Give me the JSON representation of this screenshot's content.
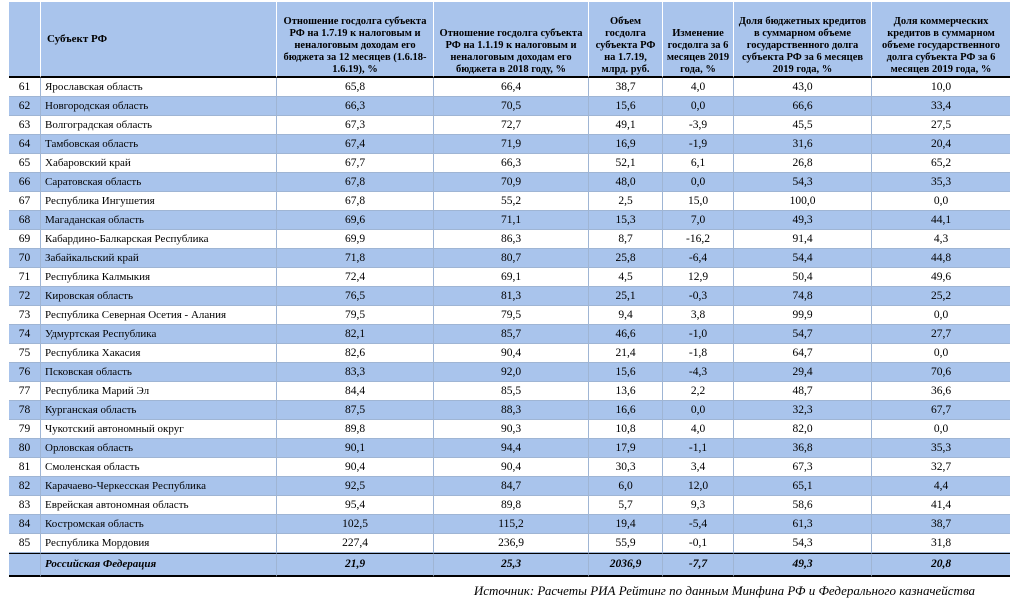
{
  "header": {
    "subject": "Субъект РФ",
    "c1": "Отношение госдолга субъекта РФ на 1.7.19 к налоговым и неналоговым доходам его бюджета за 12 месяцев (1.6.18-1.6.19), %",
    "c2": "Отношение госдолга субъекта РФ на 1.1.19 к налоговым и неналоговым доходам его бюджета в 2018 году, %",
    "c3": "Объем госдолга субъекта РФ на 1.7.19, млрд. руб.",
    "c4": "Изменение госдолга за 6 месяцев 2019 года, %",
    "c5": "Доля бюджетных кредитов в суммарном объеме государственного долга субъекта РФ за 6 месяцев 2019 года, %",
    "c6": "Доля коммерческих кредитов в суммарном объеме государственного долга субъекта РФ за 6 месяцев 2019 года, %"
  },
  "rows": [
    {
      "n": "61",
      "name": "Ярославская область",
      "v": [
        "65,8",
        "66,4",
        "38,7",
        "4,0",
        "43,0",
        "10,0"
      ]
    },
    {
      "n": "62",
      "name": "Новгородская область",
      "v": [
        "66,3",
        "70,5",
        "15,6",
        "0,0",
        "66,6",
        "33,4"
      ]
    },
    {
      "n": "63",
      "name": "Волгоградская область",
      "v": [
        "67,3",
        "72,7",
        "49,1",
        "-3,9",
        "45,5",
        "27,5"
      ]
    },
    {
      "n": "64",
      "name": "Тамбовская область",
      "v": [
        "67,4",
        "71,9",
        "16,9",
        "-1,9",
        "31,6",
        "20,4"
      ]
    },
    {
      "n": "65",
      "name": "Хабаровский край",
      "v": [
        "67,7",
        "66,3",
        "52,1",
        "6,1",
        "26,8",
        "65,2"
      ]
    },
    {
      "n": "66",
      "name": "Саратовская область",
      "v": [
        "67,8",
        "70,9",
        "48,0",
        "0,0",
        "54,3",
        "35,3"
      ]
    },
    {
      "n": "67",
      "name": "Республика Ингушетия",
      "v": [
        "67,8",
        "55,2",
        "2,5",
        "15,0",
        "100,0",
        "0,0"
      ]
    },
    {
      "n": "68",
      "name": "Магаданская область",
      "v": [
        "69,6",
        "71,1",
        "15,3",
        "7,0",
        "49,3",
        "44,1"
      ]
    },
    {
      "n": "69",
      "name": "Кабардино-Балкарская Республика",
      "v": [
        "69,9",
        "86,3",
        "8,7",
        "-16,2",
        "91,4",
        "4,3"
      ]
    },
    {
      "n": "70",
      "name": "Забайкальский край",
      "v": [
        "71,8",
        "80,7",
        "25,8",
        "-6,4",
        "54,4",
        "44,8"
      ]
    },
    {
      "n": "71",
      "name": "Республика Калмыкия",
      "v": [
        "72,4",
        "69,1",
        "4,5",
        "12,9",
        "50,4",
        "49,6"
      ]
    },
    {
      "n": "72",
      "name": "Кировская область",
      "v": [
        "76,5",
        "81,3",
        "25,1",
        "-0,3",
        "74,8",
        "25,2"
      ]
    },
    {
      "n": "73",
      "name": "Республика Северная Осетия - Алания",
      "v": [
        "79,5",
        "79,5",
        "9,4",
        "3,8",
        "99,9",
        "0,0"
      ]
    },
    {
      "n": "74",
      "name": "Удмуртская Республика",
      "v": [
        "82,1",
        "85,7",
        "46,6",
        "-1,0",
        "54,7",
        "27,7"
      ]
    },
    {
      "n": "75",
      "name": "Республика Хакасия",
      "v": [
        "82,6",
        "90,4",
        "21,4",
        "-1,8",
        "64,7",
        "0,0"
      ]
    },
    {
      "n": "76",
      "name": "Псковская область",
      "v": [
        "83,3",
        "92,0",
        "15,6",
        "-4,3",
        "29,4",
        "70,6"
      ]
    },
    {
      "n": "77",
      "name": "Республика Марий Эл",
      "v": [
        "84,4",
        "85,5",
        "13,6",
        "2,2",
        "48,7",
        "36,6"
      ]
    },
    {
      "n": "78",
      "name": "Курганская область",
      "v": [
        "87,5",
        "88,3",
        "16,6",
        "0,0",
        "32,3",
        "67,7"
      ]
    },
    {
      "n": "79",
      "name": "Чукотский автономный округ",
      "v": [
        "89,8",
        "90,3",
        "10,8",
        "4,0",
        "82,0",
        "0,0"
      ]
    },
    {
      "n": "80",
      "name": "Орловская область",
      "v": [
        "90,1",
        "94,4",
        "17,9",
        "-1,1",
        "36,8",
        "35,3"
      ]
    },
    {
      "n": "81",
      "name": "Смоленская область",
      "v": [
        "90,4",
        "90,4",
        "30,3",
        "3,4",
        "67,3",
        "32,7"
      ]
    },
    {
      "n": "82",
      "name": "Карачаево-Черкесская Республика",
      "v": [
        "92,5",
        "84,7",
        "6,0",
        "12,0",
        "65,1",
        "4,4"
      ]
    },
    {
      "n": "83",
      "name": "Еврейская автономная область",
      "v": [
        "95,4",
        "89,8",
        "5,7",
        "9,3",
        "58,6",
        "41,4"
      ]
    },
    {
      "n": "84",
      "name": "Костромская область",
      "v": [
        "102,5",
        "115,2",
        "19,4",
        "-5,4",
        "61,3",
        "38,7"
      ]
    },
    {
      "n": "85",
      "name": "Республика Мордовия",
      "v": [
        "227,4",
        "236,9",
        "55,9",
        "-0,1",
        "54,3",
        "31,8"
      ]
    }
  ],
  "total": {
    "name": "Российская Федерация",
    "v": [
      "21,9",
      "25,3",
      "2036,9",
      "-7,7",
      "49,3",
      "20,8"
    ]
  },
  "source": "Источник: Расчеты РИА Рейтинг по данным Минфина РФ и Федерального казначейства",
  "colors": {
    "header_bg": "#a9c4ec",
    "alt_row_bg": "#a9c4ec",
    "row_border": "#9fb5d4"
  }
}
